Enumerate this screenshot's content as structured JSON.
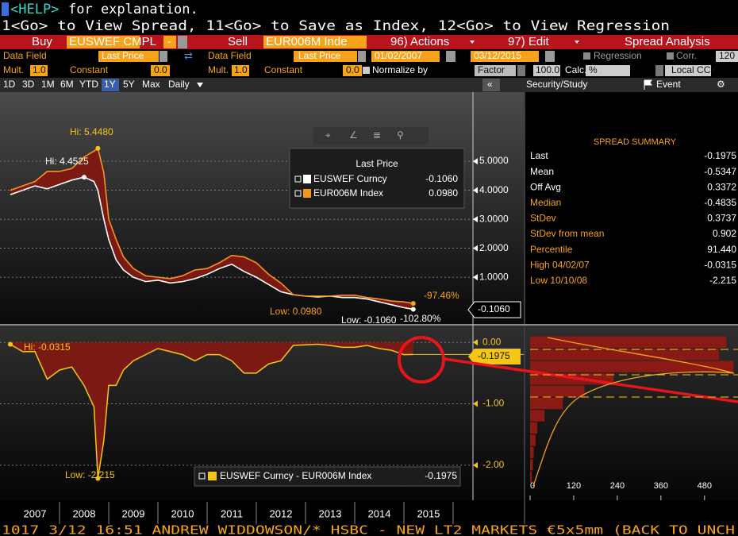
{
  "header": {
    "help_key": "<HELP>",
    "help_text": "for explanation.",
    "commands": "1<Go> to View Spread, 11<Go> to Save as Index, 12<Go> to View Regression"
  },
  "toolbar_main": {
    "buy": "Buy",
    "buy_ticker": "EUSWEF CMPL",
    "operator": "-",
    "sell": "Sell",
    "sell_ticker": "EUR006M Inde",
    "actions": "96) Actions",
    "edit": "97) Edit",
    "title": "Spread Analysis"
  },
  "toolbar_fields": {
    "field1": "Data Field",
    "price1": "Last Price",
    "field2": "Data Field",
    "price2": "Last Price",
    "start": "01/02/2007",
    "end": "03/12/2015",
    "regression": "Regression",
    "corr": "Corr.",
    "corr_value": "120"
  },
  "toolbar_params": {
    "mult1": "Mult.",
    "mult1_value": "1.0",
    "const1": "Constant",
    "const1_value": "0.0",
    "mult2": "Mult.",
    "mult2_value": "1.0",
    "const2": "Constant",
    "const2_value": "0.0",
    "normalize": "Normalize by",
    "factor": "Factor",
    "factor_value": "100.0",
    "calc": "Calc.",
    "calc_value": "%",
    "ccy": "Local CCY"
  },
  "toolbar_periods": {
    "periods": [
      "1D",
      "3D",
      "1M",
      "6M",
      "YTD",
      "1Y",
      "5Y",
      "Max"
    ],
    "active": "1Y",
    "frequency": "Daily",
    "collapse": "«",
    "study": "Security/Study",
    "event": "Event"
  },
  "price_chart": {
    "type": "line",
    "x": [
      2007.0,
      2007.25,
      2007.5,
      2007.75,
      2008.0,
      2008.25,
      2008.5,
      2008.7,
      2008.78,
      2008.9,
      2009.0,
      2009.15,
      2009.3,
      2009.5,
      2009.75,
      2010.0,
      2010.25,
      2010.5,
      2010.75,
      2011.0,
      2011.25,
      2011.5,
      2011.75,
      2012.0,
      2012.25,
      2012.5,
      2012.75,
      2013.0,
      2013.25,
      2013.5,
      2013.75,
      2014.0,
      2014.25,
      2014.5,
      2014.75,
      2015.0,
      2015.19
    ],
    "series": [
      {
        "name": "EUSWEF Curncy",
        "color": "#ffffff",
        "values": [
          3.85,
          4.0,
          4.15,
          4.05,
          4.2,
          4.35,
          4.4525,
          4.3,
          4.0,
          3.0,
          2.3,
          1.6,
          1.25,
          1.0,
          0.85,
          0.9,
          0.8,
          0.85,
          0.95,
          1.1,
          1.3,
          1.45,
          1.2,
          1.0,
          0.75,
          0.5,
          0.4,
          0.35,
          0.32,
          0.35,
          0.3,
          0.3,
          0.25,
          0.15,
          0.05,
          -0.05,
          -0.106
        ],
        "last": "-0.1060"
      },
      {
        "name": "EUR006M Index",
        "color": "#f7941d",
        "values": [
          4.0,
          4.15,
          4.3,
          4.65,
          4.65,
          4.75,
          5.15,
          5.35,
          5.448,
          4.6,
          3.0,
          2.3,
          1.7,
          1.3,
          1.05,
          1.0,
          0.95,
          1.05,
          1.25,
          1.3,
          1.5,
          1.75,
          1.7,
          1.5,
          1.1,
          0.8,
          0.4,
          0.35,
          0.35,
          0.35,
          0.38,
          0.38,
          0.3,
          0.25,
          0.18,
          0.15,
          0.098
        ],
        "last": "0.0980"
      }
    ],
    "fill_color": "#7a1a12",
    "legend_title": "Last Price",
    "xlim": [
      2006.79,
      2016.0
    ],
    "ylim": [
      -0.53,
      7.33
    ],
    "yticks": [
      {
        "value": 1,
        "label": "1.0000"
      },
      {
        "value": 2,
        "label": "2.0000"
      },
      {
        "value": 3,
        "label": "3.0000"
      },
      {
        "value": 4,
        "label": "4.0000"
      },
      {
        "value": 5,
        "label": "5.0000"
      }
    ],
    "grid": true,
    "annotations": {
      "hi_orange": "Hi: 5.4480",
      "hi_white": "Hi: 4.4525",
      "low_orange": "Low: 0.0980",
      "low_white": "Low: -0.1060",
      "pct_orange": "-97.46%",
      "pct_white": "-102.80%",
      "tag": "-0.1060"
    }
  },
  "spread_chart": {
    "type": "area",
    "x": [
      2007.0,
      2007.25,
      2007.5,
      2007.75,
      2008.0,
      2008.25,
      2008.5,
      2008.7,
      2008.78,
      2008.9,
      2009.0,
      2009.15,
      2009.3,
      2009.5,
      2009.75,
      2010.0,
      2010.25,
      2010.5,
      2010.75,
      2011.0,
      2011.25,
      2011.5,
      2011.75,
      2012.0,
      2012.25,
      2012.5,
      2012.75,
      2013.0,
      2013.25,
      2013.5,
      2013.75,
      2014.0,
      2014.25,
      2014.5,
      2014.75,
      2015.0,
      2015.19
    ],
    "series": [
      {
        "name": "EUSWEF Curncy - EUR006M Index",
        "color": "#f5c518",
        "values": [
          -0.0315,
          -0.15,
          -0.15,
          -0.6,
          -0.45,
          -0.4,
          -0.7,
          -1.05,
          -2.215,
          -1.6,
          -0.7,
          -0.7,
          -0.45,
          -0.3,
          -0.2,
          -0.1,
          -0.15,
          -0.2,
          -0.3,
          -0.2,
          -0.2,
          -0.3,
          -0.5,
          -0.5,
          -0.35,
          -0.3,
          -0.05,
          -0.04,
          -0.03,
          -0.05,
          -0.08,
          -0.08,
          -0.05,
          -0.1,
          -0.13,
          -0.2,
          -0.1975
        ],
        "last": "-0.1975"
      }
    ],
    "fill_color": "#7a1a12",
    "xlim": [
      2006.79,
      2016.0
    ],
    "ylim": [
      -2.57,
      0.17
    ],
    "yticks": [
      {
        "value": 0,
        "label": "0.00"
      },
      {
        "value": -1,
        "label": "-1.00"
      },
      {
        "value": -2,
        "label": "-2.00"
      }
    ],
    "grid": true,
    "annotations": {
      "hi": "Hi: -0.0315",
      "low": "Low: -2.215",
      "tag": "-0.1975"
    }
  },
  "histogram": {
    "type": "histogram",
    "bins": [
      -2.3,
      -2.1,
      -1.9,
      -1.7,
      -1.5,
      -1.3,
      -1.1,
      -0.9,
      -0.7,
      -0.5,
      -0.3,
      -0.1,
      0.1
    ],
    "values": [
      5,
      8,
      10,
      15,
      20,
      40,
      90,
      150,
      230,
      560,
      520,
      540
    ],
    "color": "#8a1a14",
    "xlim": [
      0,
      570
    ],
    "xticks": [
      0,
      120,
      240,
      360,
      480
    ]
  },
  "years": {
    "xticks": [
      2007,
      2008,
      2009,
      2010,
      2011,
      2012,
      2013,
      2014,
      2015
    ]
  },
  "summary": {
    "title": "SPREAD SUMMARY",
    "rows": [
      [
        "Last",
        "-0.1975"
      ],
      [
        "Mean",
        "-0.5347"
      ],
      [
        "Off Avg",
        "0.3372"
      ],
      [
        "Median",
        "-0.4835"
      ],
      [
        "StDev",
        "0.3737"
      ],
      [
        "StDev from mean",
        "0.902"
      ],
      [
        "Percentile",
        "91.440"
      ],
      [
        "High 04/02/07",
        "-0.0315"
      ],
      [
        "Low 10/10/08",
        "-2.215"
      ]
    ]
  },
  "ticker": "1017   3/12 16:51 ANDREW WIDDOWSON/* HSBC - NEW LT2 MARKETS €5x5mm (BACK TO UNCH"
}
